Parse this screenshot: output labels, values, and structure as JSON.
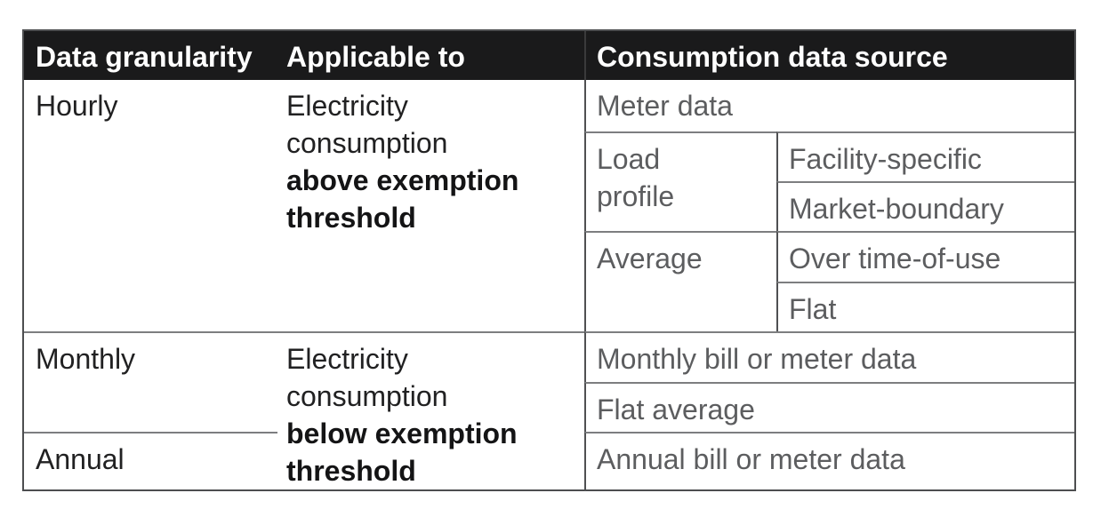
{
  "chart_data": {
    "type": "table",
    "columns": {
      "c1": "Data granularity",
      "c2": "Applicable to",
      "c3": "Consumption data source"
    },
    "hourly": {
      "label": "Hourly",
      "applicable_regular": "Electricity consumption ",
      "applicable_bold": "above exemption threshold",
      "sources": {
        "meter": "Meter data",
        "load_profile": "Load profile",
        "facility_specific": "Facility-specific",
        "market_boundary": "Market-boundary",
        "average": "Average",
        "over_time_of_use": "Over time-of-use",
        "flat": "Flat"
      }
    },
    "monthly": {
      "label": "Monthly",
      "source_bill": "Monthly bill or meter data",
      "source_flat_average": "Flat average"
    },
    "annual": {
      "label": "Annual",
      "source_bill": "Annual bill or meter data"
    },
    "monthly_annual": {
      "applicable_regular": "Electricity consumption ",
      "applicable_bold": "below exemption threshold"
    }
  },
  "colors": {
    "header_bg": "#1a1a1b",
    "header_text": "#ffffff",
    "body_text_dark": "#212122",
    "body_text_bold": "#141415",
    "body_text_gray": "#5c5d5f",
    "border_outer": "#4d4e50",
    "border_vertical": "#4f5052",
    "border_horizontal": "#7d7e80",
    "border_header_divider": "#3a3a3b"
  }
}
